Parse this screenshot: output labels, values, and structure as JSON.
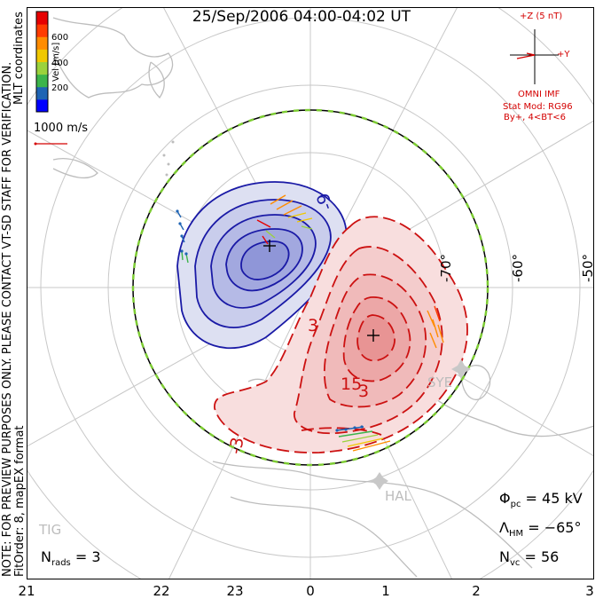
{
  "title": "25/Sep/2006 04:00-04:02 UT",
  "coords_label": "MLT coordinates",
  "notice_line1": "NOTE: FOR PREVIEW PURPOSES ONLY. PLEASE CONTACT VT-SD STAFF FOR VERIFICATION.",
  "notice_line2": "FitOrder: 8, mapEX format",
  "color_scale": {
    "label": "Vel [m/s]",
    "ticks": [
      "600",
      "400",
      "200"
    ],
    "colors": [
      "#0000ff",
      "#1e64b4",
      "#3cb44b",
      "#9bd23c",
      "#f0c800",
      "#ff8c00",
      "#ff3c00",
      "#e60000"
    ]
  },
  "velocity_ref": "1000 m/s",
  "imf": {
    "z_label": "+Z (5 nT)",
    "y_label": "+Y",
    "source": "OMNI IMF",
    "model_line1": "Stat Mod: RG96",
    "model_line2": "By+, 4<BT<6"
  },
  "latitude_labels": [
    "-70°",
    "-60°",
    "-50°"
  ],
  "mlt_ticks": [
    "21",
    "22",
    "23",
    "0",
    "1",
    "2",
    "3"
  ],
  "contour_labels": [
    "-9",
    "3",
    "3",
    "15",
    "-3"
  ],
  "stations": [
    "SYE",
    "HAL",
    "TIG"
  ],
  "stats": {
    "phi_label": "Φ",
    "phi_sub": "pc",
    "phi_value": "= 45 kV",
    "lambda_label": "Λ",
    "lambda_sub": "HM",
    "lambda_value": "= −65°",
    "nvc_label": "N",
    "nvc_sub": "vc",
    "nvc_value": "= 56",
    "nrads_label": "N",
    "nrads_sub": "rads",
    "nrads_value": "= 3"
  },
  "colors": {
    "negative": "#1a1aa6",
    "positive": "#cc1111",
    "boundary_green": "#7dcc33"
  }
}
